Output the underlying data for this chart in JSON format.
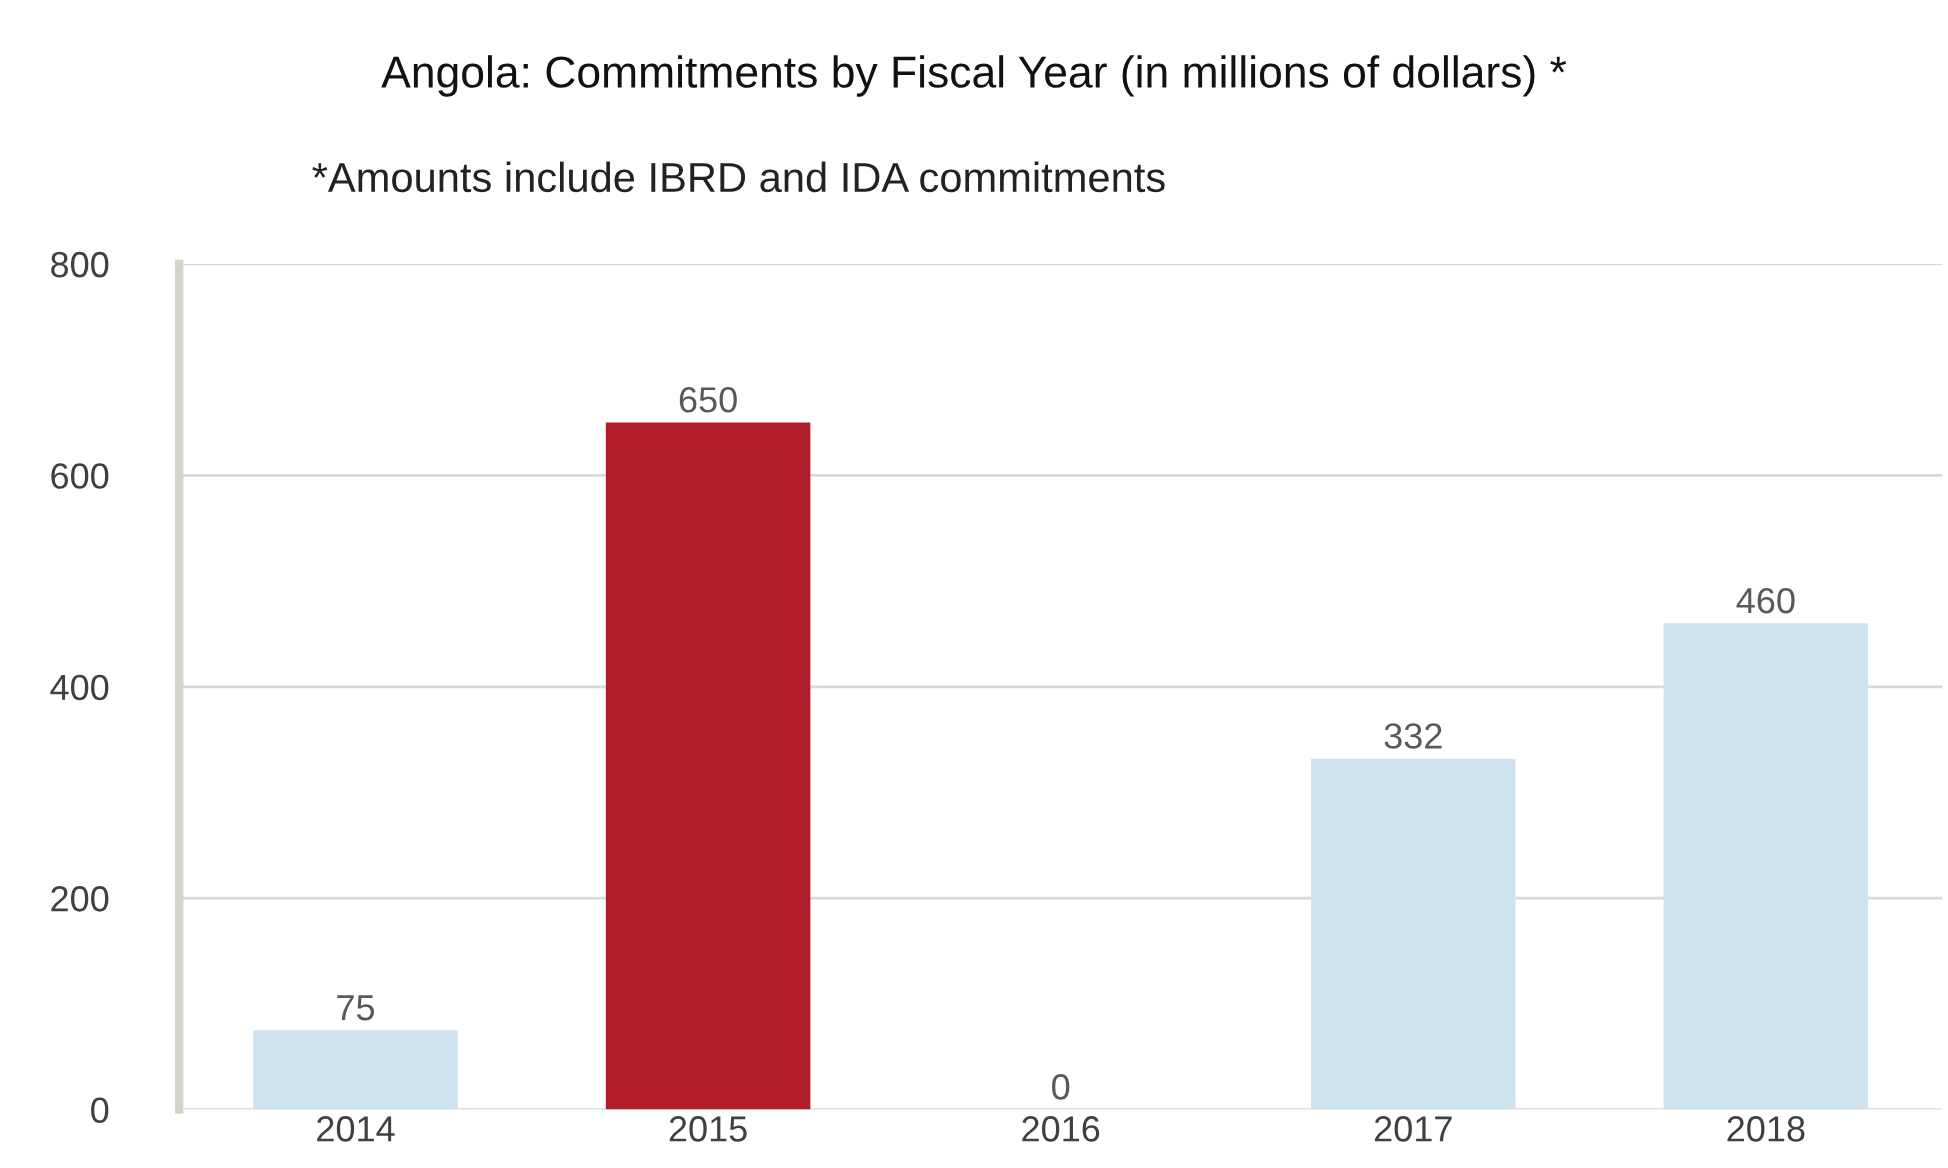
{
  "chart_data": {
    "type": "bar",
    "title": "Angola: Commitments by Fiscal Year (in millions of dollars) *",
    "subtitle": "*Amounts include IBRD and IDA commitments",
    "categories": [
      "2014",
      "2015",
      "2016",
      "2017",
      "2018"
    ],
    "values": [
      75,
      650,
      0,
      332,
      460
    ],
    "colors": [
      "#cfe2ef",
      "#b01c2a",
      "#cfe2ef",
      "#cfe2ef",
      "#cfe2ef"
    ],
    "ylim": [
      0,
      800
    ],
    "yticks": [
      0,
      200,
      400,
      600,
      800
    ],
    "grid": "y",
    "data_labels": true
  }
}
